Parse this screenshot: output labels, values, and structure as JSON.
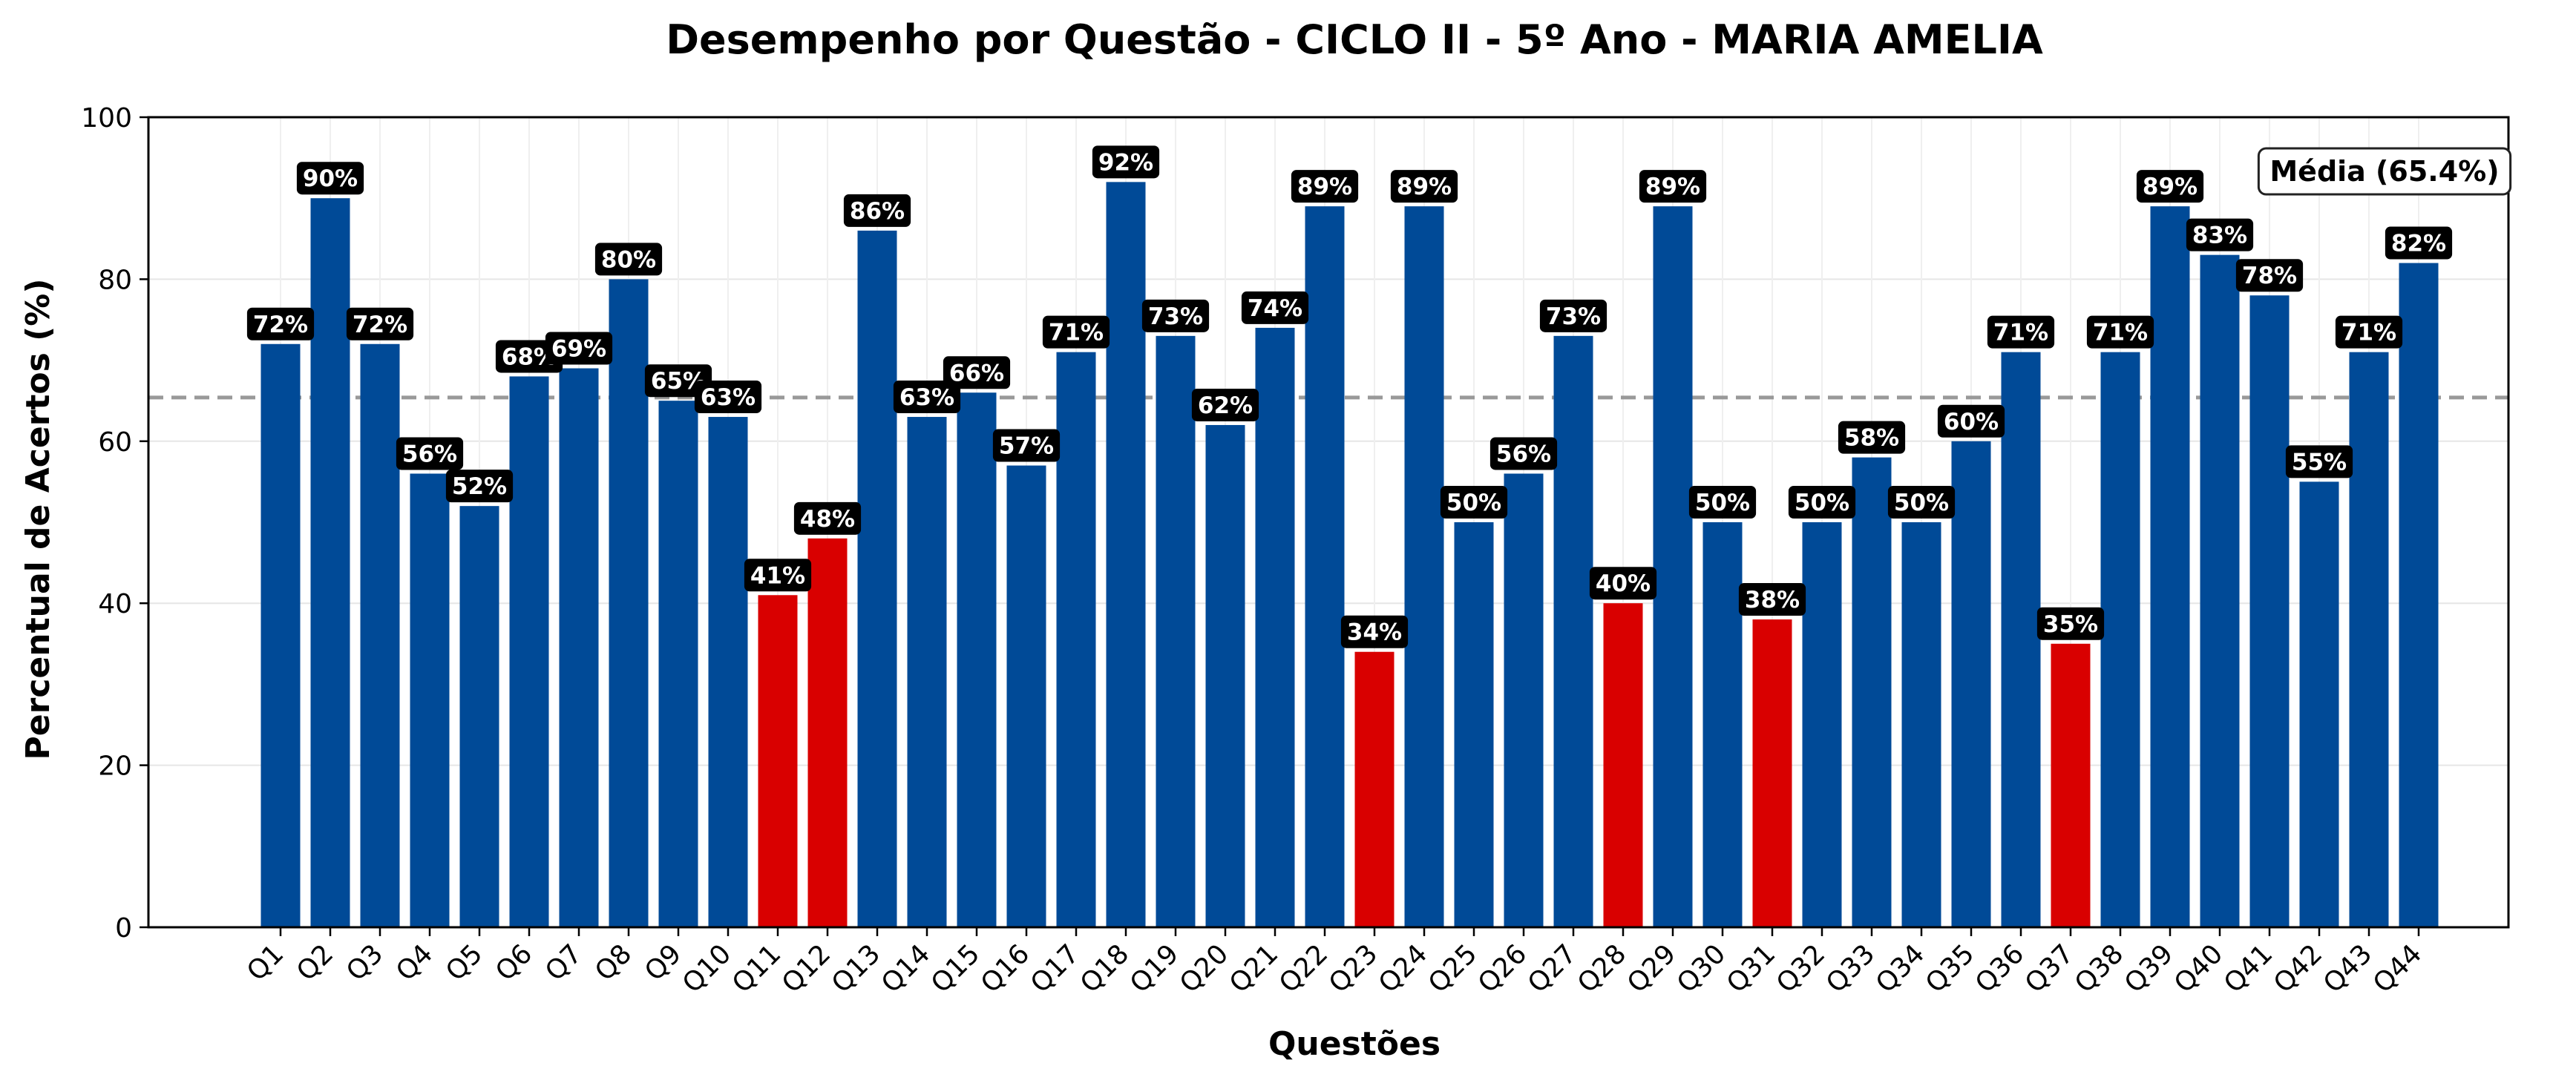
{
  "chart_data": {
    "type": "bar",
    "title": "Desempenho por Questão - CICLO II - 5º Ano - MARIA AMELIA",
    "xlabel": "Questões",
    "ylabel": "Percentual de Acertos (%)",
    "ylim": [
      0,
      100
    ],
    "yticks": [
      0,
      20,
      40,
      60,
      80,
      100
    ],
    "grid": true,
    "categories": [
      "Q1",
      "Q2",
      "Q3",
      "Q4",
      "Q5",
      "Q6",
      "Q7",
      "Q8",
      "Q9",
      "Q10",
      "Q11",
      "Q12",
      "Q13",
      "Q14",
      "Q15",
      "Q16",
      "Q17",
      "Q18",
      "Q19",
      "Q20",
      "Q21",
      "Q22",
      "Q23",
      "Q24",
      "Q25",
      "Q26",
      "Q27",
      "Q28",
      "Q29",
      "Q30",
      "Q31",
      "Q32",
      "Q33",
      "Q34",
      "Q35",
      "Q36",
      "Q37",
      "Q38",
      "Q39",
      "Q40",
      "Q41",
      "Q42",
      "Q43",
      "Q44"
    ],
    "values": [
      72,
      90,
      72,
      56,
      52,
      68,
      69,
      80,
      65,
      63,
      41,
      48,
      86,
      63,
      66,
      57,
      71,
      92,
      73,
      62,
      74,
      89,
      34,
      89,
      50,
      56,
      73,
      40,
      89,
      50,
      38,
      50,
      58,
      50,
      60,
      71,
      35,
      71,
      89,
      83,
      78,
      55,
      71,
      82
    ],
    "data_labels": [
      "72%",
      "90%",
      "72%",
      "56%",
      "52%",
      "68%",
      "69%",
      "80%",
      "65%",
      "63%",
      "41%",
      "48%",
      "86%",
      "63%",
      "66%",
      "57%",
      "71%",
      "92%",
      "73%",
      "62%",
      "74%",
      "89%",
      "34%",
      "89%",
      "50%",
      "56%",
      "73%",
      "40%",
      "89%",
      "50%",
      "38%",
      "50%",
      "58%",
      "50%",
      "60%",
      "71%",
      "35%",
      "71%",
      "89%",
      "83%",
      "78%",
      "55%",
      "71%",
      "82%"
    ],
    "highlight_threshold": 50,
    "colors": {
      "normal": "#004a97",
      "highlight": "#d90000",
      "mean_line": "#999999",
      "label_bg": "#000000"
    },
    "mean": {
      "value": 65.4,
      "label": "Média (65.4%)",
      "legend_position": "top-right"
    }
  }
}
